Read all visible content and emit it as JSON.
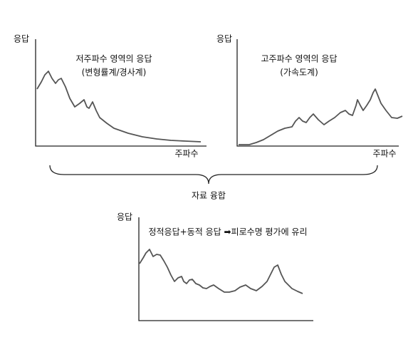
{
  "panels": [
    {
      "y_label": "응답",
      "title": "저주파수 영역의 응답",
      "subtitle": "(변형률계/경사계)",
      "x_label": "주파수"
    },
    {
      "y_label": "응답",
      "title": "고주파수 영역의 응답",
      "subtitle": "(가속도계)",
      "x_label": "주파수"
    }
  ],
  "fusion_label": "자료 융합",
  "result": {
    "y_label": "응답",
    "title": "정적응답+동적 응답 ➡피로수명 평가에 유리"
  }
}
